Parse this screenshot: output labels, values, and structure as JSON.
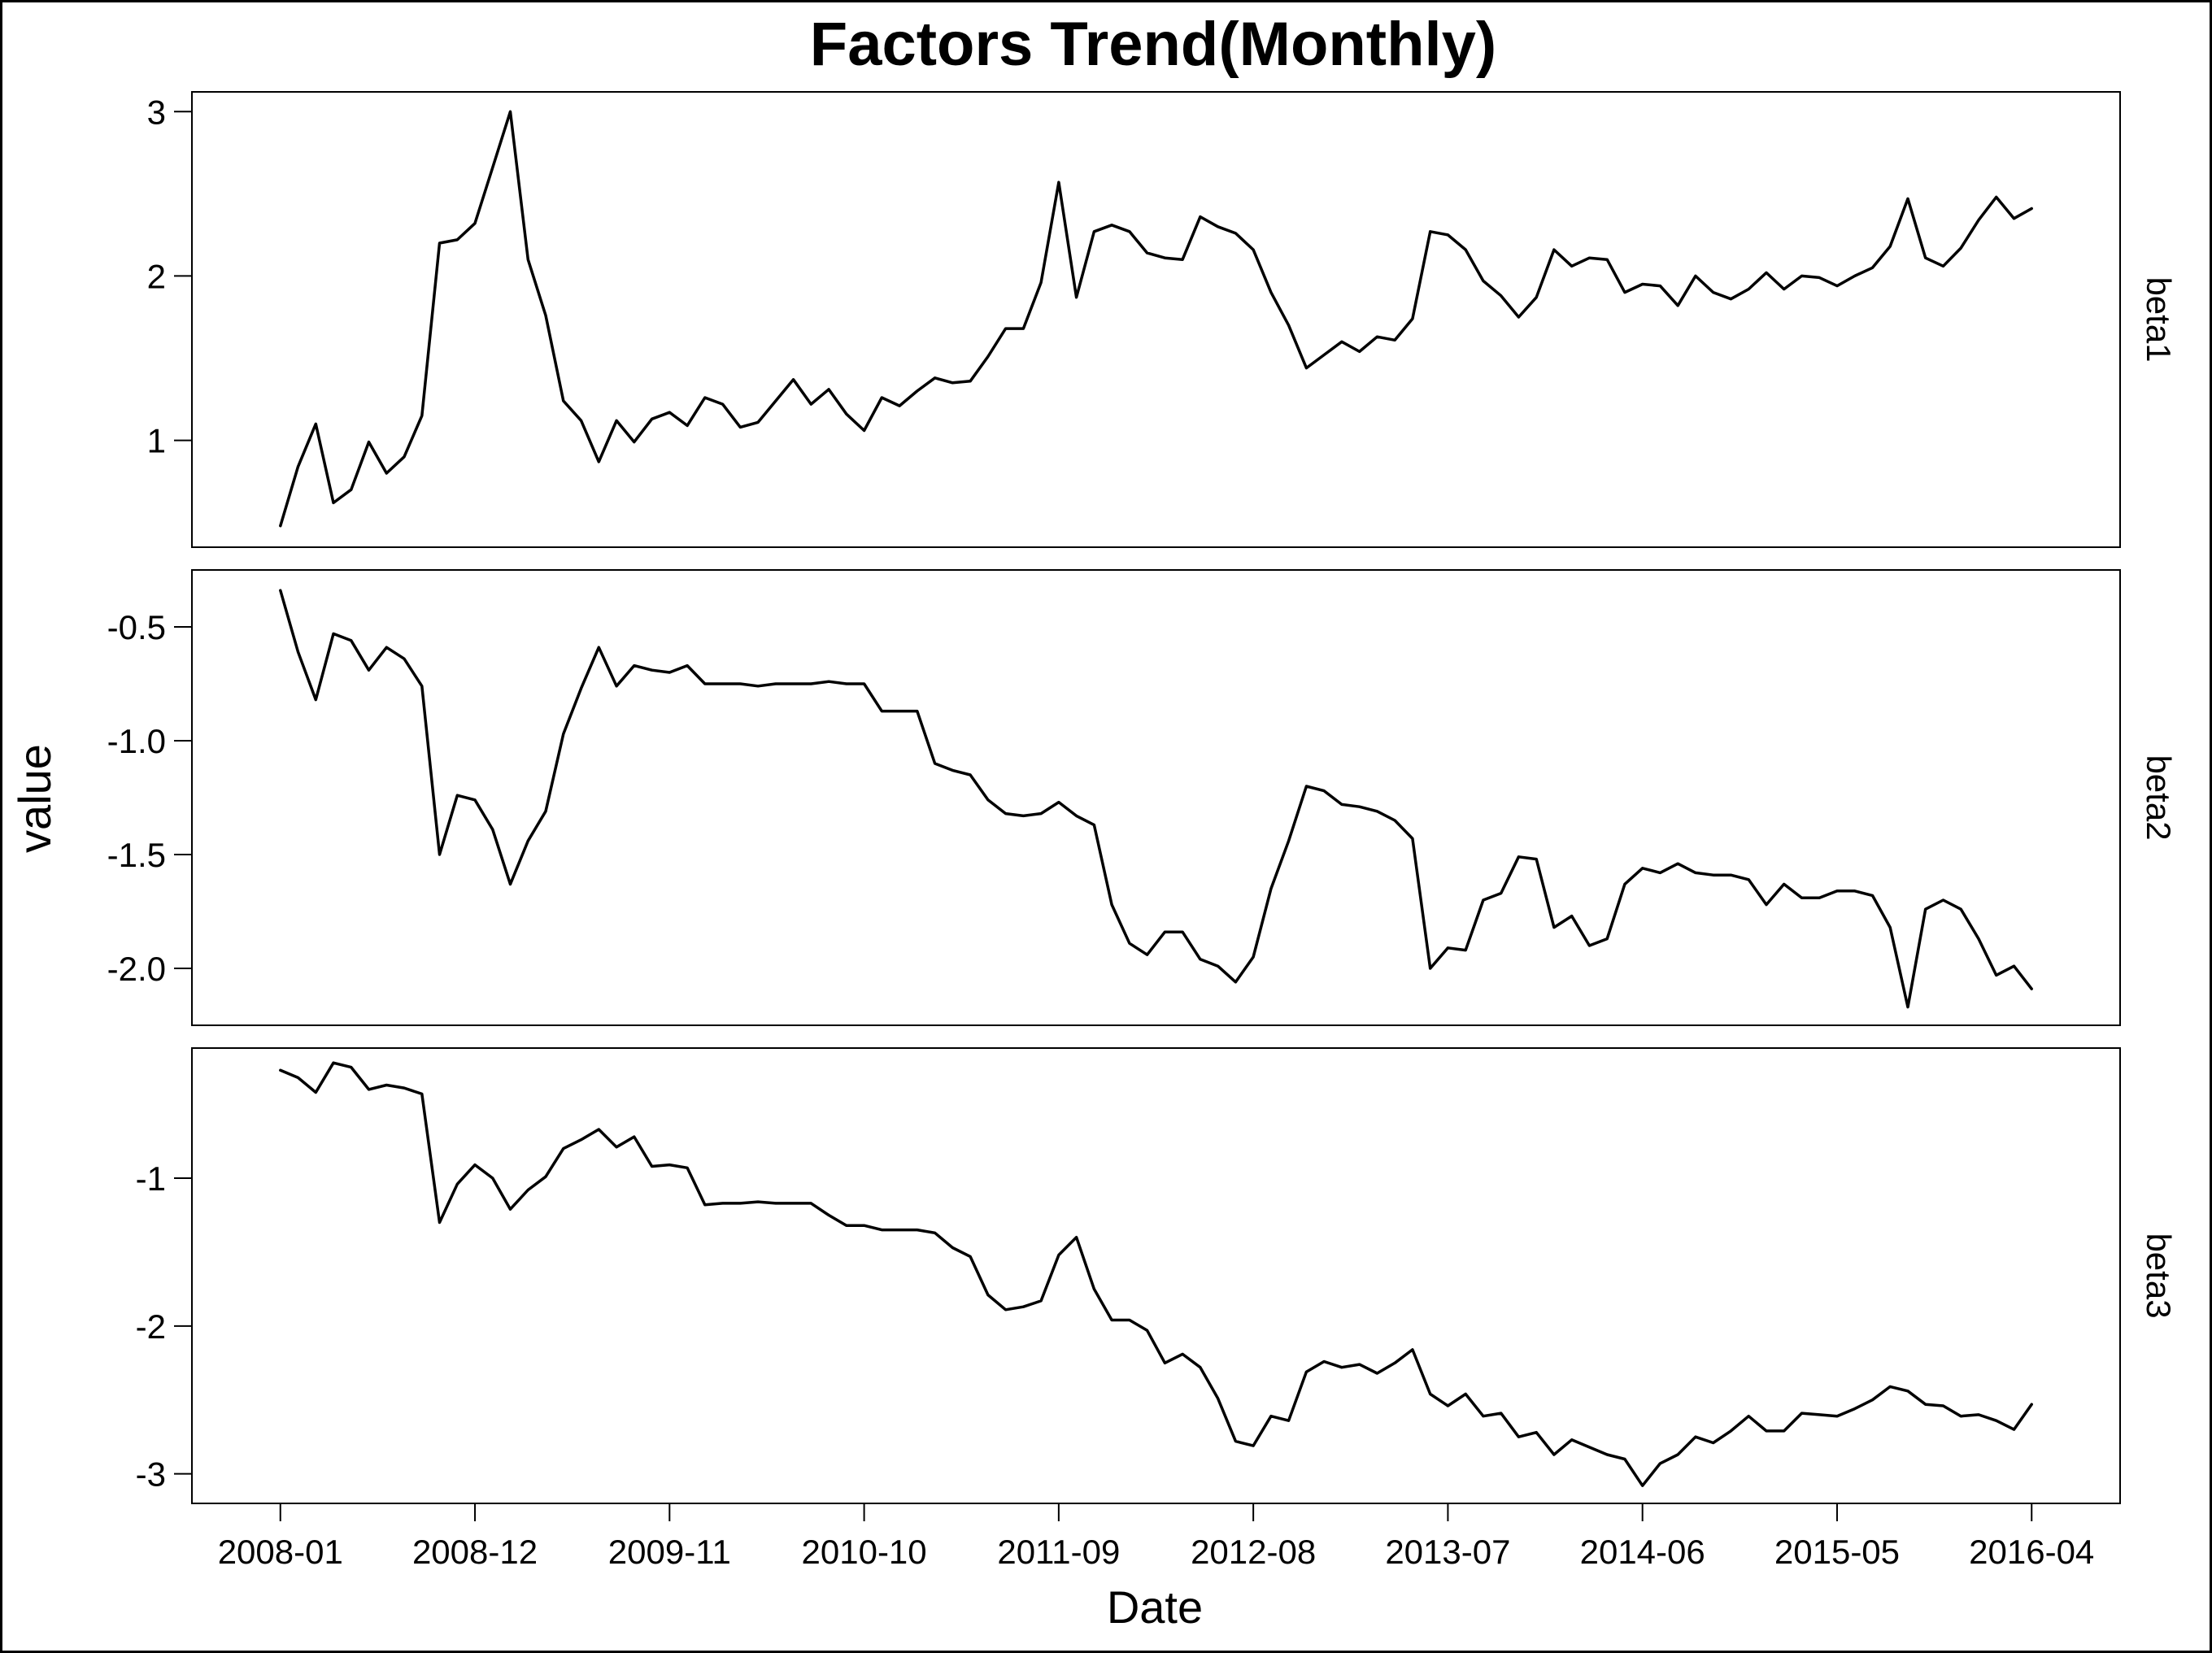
{
  "chart_data": {
    "type": "line",
    "title": "Factors Trend(Monthly)",
    "xlabel": "Date",
    "ylabel": "value",
    "x_start": "2008-01",
    "x_ticks": [
      "2008-01",
      "2008-12",
      "2009-11",
      "2010-10",
      "2011-09",
      "2012-08",
      "2013-07",
      "2014-06",
      "2015-05",
      "2016-04"
    ],
    "xlim": [
      "2007-08",
      "2016-09"
    ],
    "grid": false,
    "legend": "none",
    "line_color": "#000000",
    "panels": [
      {
        "name": "beta1",
        "ylim": [
          0.35,
          3.12
        ],
        "y_ticks": [
          1,
          2,
          3
        ],
        "y_tick_labels": [
          "1",
          "2",
          "3"
        ],
        "values": [
          0.48,
          0.84,
          1.1,
          0.62,
          0.7,
          0.99,
          0.8,
          0.9,
          1.15,
          2.2,
          2.22,
          2.32,
          2.66,
          3.0,
          2.1,
          1.76,
          1.24,
          1.12,
          0.87,
          1.12,
          0.99,
          1.13,
          1.17,
          1.09,
          1.26,
          1.22,
          1.08,
          1.11,
          1.24,
          1.37,
          1.22,
          1.31,
          1.16,
          1.06,
          1.26,
          1.21,
          1.3,
          1.38,
          1.35,
          1.36,
          1.51,
          1.68,
          1.68,
          1.96,
          2.57,
          1.87,
          2.27,
          2.31,
          2.27,
          2.14,
          2.11,
          2.1,
          2.36,
          2.3,
          2.26,
          2.16,
          1.9,
          1.7,
          1.44,
          1.52,
          1.6,
          1.54,
          1.63,
          1.61,
          1.74,
          2.27,
          2.25,
          2.16,
          1.97,
          1.88,
          1.75,
          1.87,
          2.16,
          2.06,
          2.11,
          2.1,
          1.9,
          1.95,
          1.94,
          1.82,
          2.0,
          1.9,
          1.86,
          1.92,
          2.02,
          1.92,
          2.0,
          1.99,
          1.94,
          2.0,
          2.05,
          2.18,
          2.47,
          2.11,
          2.06,
          2.17,
          2.34,
          2.48,
          2.35,
          2.41
        ]
      },
      {
        "name": "beta2",
        "ylim": [
          -2.25,
          -0.25
        ],
        "y_ticks": [
          -0.5,
          -1.0,
          -1.5,
          -2.0
        ],
        "y_tick_labels": [
          "-0.5",
          "-1.0",
          "-1.5",
          "-2.0"
        ],
        "values": [
          -0.34,
          -0.61,
          -0.82,
          -0.53,
          -0.56,
          -0.69,
          -0.59,
          -0.64,
          -0.76,
          -1.5,
          -1.24,
          -1.26,
          -1.39,
          -1.63,
          -1.44,
          -1.31,
          -0.97,
          -0.77,
          -0.59,
          -0.76,
          -0.67,
          -0.69,
          -0.7,
          -0.67,
          -0.75,
          -0.75,
          -0.75,
          -0.76,
          -0.75,
          -0.75,
          -0.75,
          -0.74,
          -0.75,
          -0.75,
          -0.87,
          -0.87,
          -0.87,
          -1.1,
          -1.13,
          -1.15,
          -1.26,
          -1.32,
          -1.33,
          -1.32,
          -1.27,
          -1.33,
          -1.37,
          -1.72,
          -1.89,
          -1.94,
          -1.84,
          -1.84,
          -1.96,
          -1.99,
          -2.06,
          -1.95,
          -1.65,
          -1.44,
          -1.2,
          -1.22,
          -1.28,
          -1.29,
          -1.31,
          -1.35,
          -1.43,
          -2.0,
          -1.91,
          -1.92,
          -1.7,
          -1.67,
          -1.51,
          -1.52,
          -1.82,
          -1.77,
          -1.9,
          -1.87,
          -1.63,
          -1.56,
          -1.58,
          -1.54,
          -1.58,
          -1.59,
          -1.59,
          -1.61,
          -1.72,
          -1.63,
          -1.69,
          -1.69,
          -1.66,
          -1.66,
          -1.68,
          -1.82,
          -2.17,
          -1.74,
          -1.7,
          -1.74,
          -1.87,
          -2.03,
          -1.99,
          -2.09
        ]
      },
      {
        "name": "beta3",
        "ylim": [
          -3.2,
          -0.12
        ],
        "y_ticks": [
          -1,
          -2,
          -3
        ],
        "y_tick_labels": [
          "-1",
          "-2",
          "-3"
        ],
        "values": [
          -0.27,
          -0.32,
          -0.42,
          -0.22,
          -0.25,
          -0.4,
          -0.37,
          -0.39,
          -0.43,
          -1.3,
          -1.04,
          -0.91,
          -1.0,
          -1.21,
          -1.08,
          -0.99,
          -0.8,
          -0.74,
          -0.67,
          -0.79,
          -0.72,
          -0.92,
          -0.91,
          -0.93,
          -1.18,
          -1.17,
          -1.17,
          -1.16,
          -1.17,
          -1.17,
          -1.17,
          -1.25,
          -1.32,
          -1.32,
          -1.35,
          -1.35,
          -1.35,
          -1.37,
          -1.47,
          -1.53,
          -1.79,
          -1.89,
          -1.87,
          -1.83,
          -1.52,
          -1.4,
          -1.75,
          -1.96,
          -1.96,
          -2.03,
          -2.25,
          -2.19,
          -2.28,
          -2.49,
          -2.78,
          -2.81,
          -2.61,
          -2.64,
          -2.31,
          -2.24,
          -2.28,
          -2.26,
          -2.32,
          -2.25,
          -2.16,
          -2.46,
          -2.54,
          -2.46,
          -2.61,
          -2.59,
          -2.75,
          -2.72,
          -2.87,
          -2.77,
          -2.82,
          -2.87,
          -2.9,
          -3.08,
          -2.93,
          -2.87,
          -2.75,
          -2.79,
          -2.71,
          -2.61,
          -2.71,
          -2.71,
          -2.59,
          -2.6,
          -2.61,
          -2.56,
          -2.5,
          -2.41,
          -2.44,
          -2.53,
          -2.54,
          -2.61,
          -2.6,
          -2.64,
          -2.7,
          -2.53
        ]
      }
    ]
  }
}
